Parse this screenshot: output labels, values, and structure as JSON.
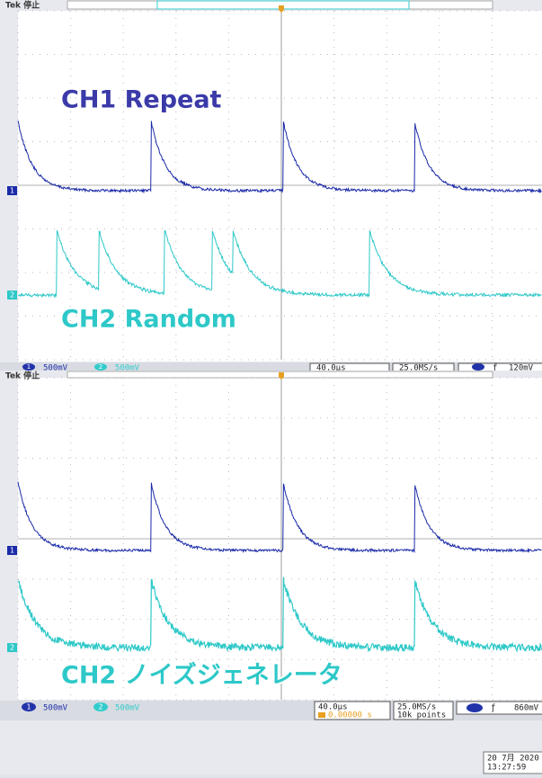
{
  "screens": [
    {
      "header": "Tek 停止",
      "channel_markers": [
        "1",
        "2"
      ],
      "labels": [
        "CH1 Repeat",
        "CH2 Random"
      ],
      "status": {
        "ch1_badge": "1",
        "ch1_scale": "500mV",
        "ch2_badge": "2",
        "ch2_scale": "500mV",
        "timebase": "40.0µs",
        "sample_rate": "25.0MS/s",
        "trigger_level": "120mV"
      }
    },
    {
      "header": "Tek 停止",
      "channel_markers": [
        "1",
        "2"
      ],
      "labels": [
        "CH2 ノイズジェネレータ"
      ],
      "status": {
        "ch1_badge": "1",
        "ch1_scale": "500mV",
        "ch2_badge": "2",
        "ch2_scale": "500mV",
        "timebase": "40.0µs",
        "trigger_position": "0.00000 s",
        "sample_rate": "25.0MS/s",
        "record_length": "10k points",
        "trigger_level": "860mV"
      }
    }
  ],
  "timestamp": {
    "date": "20 7月 2020",
    "time": "13:27:59"
  }
}
